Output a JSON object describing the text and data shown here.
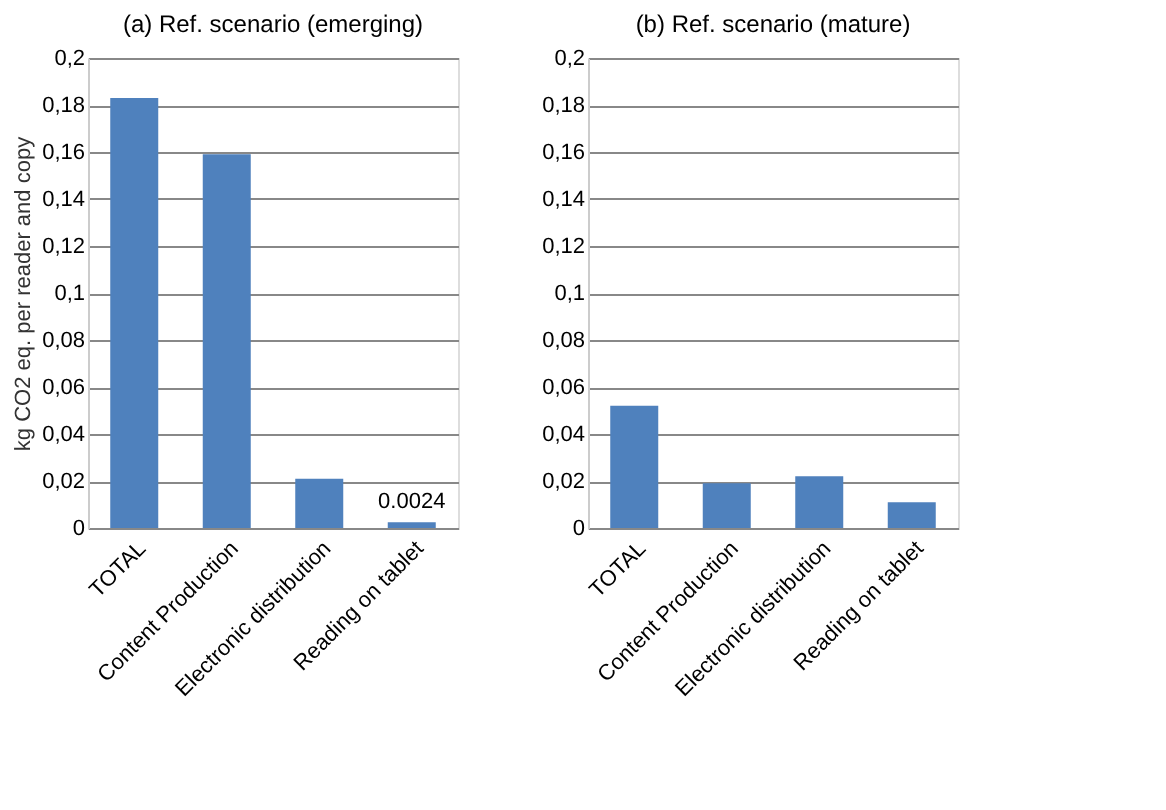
{
  "chart_data": [
    {
      "type": "bar",
      "title": "(a) Ref. scenario (emerging)",
      "ylabel": "kg CO2 eq. per reader and copy",
      "categories": [
        "TOTAL",
        "Content Production",
        "Electronic distribution",
        "Reading on tablet"
      ],
      "values": [
        0.183,
        0.159,
        0.021,
        0.0024
      ],
      "value_labels": [
        null,
        null,
        null,
        "0.0024"
      ],
      "color": "#4f81bd",
      "ylim": [
        0,
        0.2
      ],
      "yticks": [
        {
          "value": 0,
          "label": "0"
        },
        {
          "value": 0.02,
          "label": "0,02"
        },
        {
          "value": 0.04,
          "label": "0,04"
        },
        {
          "value": 0.06,
          "label": "0,06"
        },
        {
          "value": 0.08,
          "label": "0,08"
        },
        {
          "value": 0.1,
          "label": "0,1"
        },
        {
          "value": 0.12,
          "label": "0,12"
        },
        {
          "value": 0.14,
          "label": "0,14"
        },
        {
          "value": 0.16,
          "label": "0,16"
        },
        {
          "value": 0.18,
          "label": "0,18"
        },
        {
          "value": 0.2,
          "label": "0,2"
        }
      ],
      "grid": "y"
    },
    {
      "type": "bar",
      "title": "(b) Ref. scenario (mature)",
      "categories": [
        "TOTAL",
        "Content Production",
        "Electronic distribution",
        "Reading on tablet"
      ],
      "values": [
        0.052,
        0.019,
        0.022,
        0.011
      ],
      "color": "#4f81bd",
      "ylim": [
        0,
        0.2
      ],
      "yticks": [
        {
          "value": 0,
          "label": "0"
        },
        {
          "value": 0.02,
          "label": "0,02"
        },
        {
          "value": 0.04,
          "label": "0,04"
        },
        {
          "value": 0.06,
          "label": "0,06"
        },
        {
          "value": 0.08,
          "label": "0,08"
        },
        {
          "value": 0.1,
          "label": "0,1"
        },
        {
          "value": 0.12,
          "label": "0,12"
        },
        {
          "value": 0.14,
          "label": "0,14"
        },
        {
          "value": 0.16,
          "label": "0,16"
        },
        {
          "value": 0.18,
          "label": "0,18"
        },
        {
          "value": 0.2,
          "label": "0,2"
        }
      ],
      "grid": "y"
    }
  ]
}
